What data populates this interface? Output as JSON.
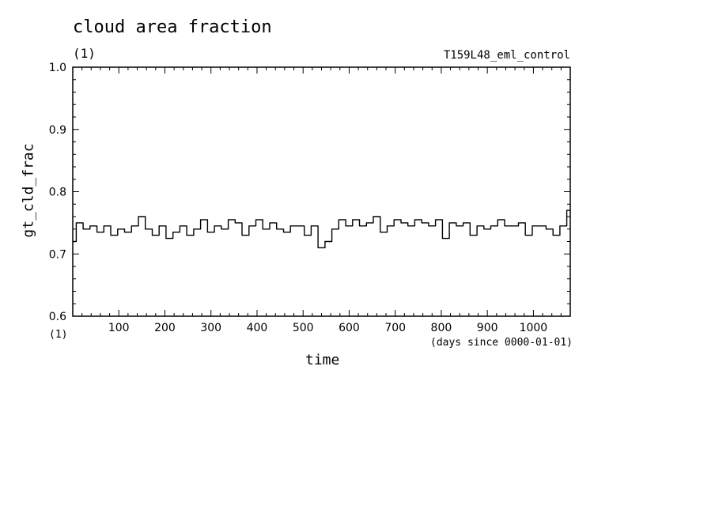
{
  "chart_data": {
    "type": "line",
    "title": "cloud area fraction",
    "title_units": "(1)",
    "run_name": "T159L48_eml_control",
    "ylabel": "gt_cld_frac",
    "xlabel": "time",
    "x_units": "(1)",
    "x_note": "(days since 0000-01-01)",
    "xlim": [
      0,
      1080
    ],
    "ylim": [
      0.6,
      1.0
    ],
    "x_ticks": [
      100,
      200,
      300,
      400,
      500,
      600,
      700,
      800,
      900,
      1000
    ],
    "y_ticks": [
      "0.6",
      "0.7",
      "0.8",
      "0.9",
      "1.0"
    ],
    "series": [
      {
        "x": [
          0,
          15,
          30,
          45,
          60,
          75,
          90,
          105,
          120,
          135,
          150,
          165,
          180,
          195,
          210,
          225,
          240,
          255,
          270,
          285,
          300,
          315,
          330,
          345,
          360,
          375,
          390,
          405,
          420,
          435,
          450,
          465,
          480,
          495,
          510,
          525,
          540,
          555,
          570,
          585,
          600,
          615,
          630,
          645,
          660,
          675,
          690,
          705,
          720,
          735,
          750,
          765,
          780,
          795,
          810,
          825,
          840,
          855,
          870,
          885,
          900,
          915,
          930,
          945,
          960,
          975,
          990,
          1005,
          1020,
          1035,
          1050,
          1065,
          1080
        ],
        "values": [
          0.72,
          0.75,
          0.74,
          0.745,
          0.735,
          0.745,
          0.73,
          0.74,
          0.735,
          0.745,
          0.76,
          0.74,
          0.73,
          0.745,
          0.725,
          0.735,
          0.745,
          0.73,
          0.74,
          0.755,
          0.735,
          0.745,
          0.74,
          0.755,
          0.75,
          0.73,
          0.745,
          0.755,
          0.74,
          0.75,
          0.74,
          0.735,
          0.745,
          0.745,
          0.73,
          0.745,
          0.71,
          0.72,
          0.74,
          0.755,
          0.745,
          0.755,
          0.745,
          0.75,
          0.76,
          0.735,
          0.745,
          0.755,
          0.75,
          0.745,
          0.755,
          0.75,
          0.745,
          0.755,
          0.725,
          0.75,
          0.745,
          0.75,
          0.73,
          0.745,
          0.74,
          0.745,
          0.755,
          0.745,
          0.745,
          0.75,
          0.73,
          0.745,
          0.745,
          0.74,
          0.73,
          0.745,
          0.77
        ]
      }
    ],
    "grid": false,
    "line_color": "#000000"
  }
}
